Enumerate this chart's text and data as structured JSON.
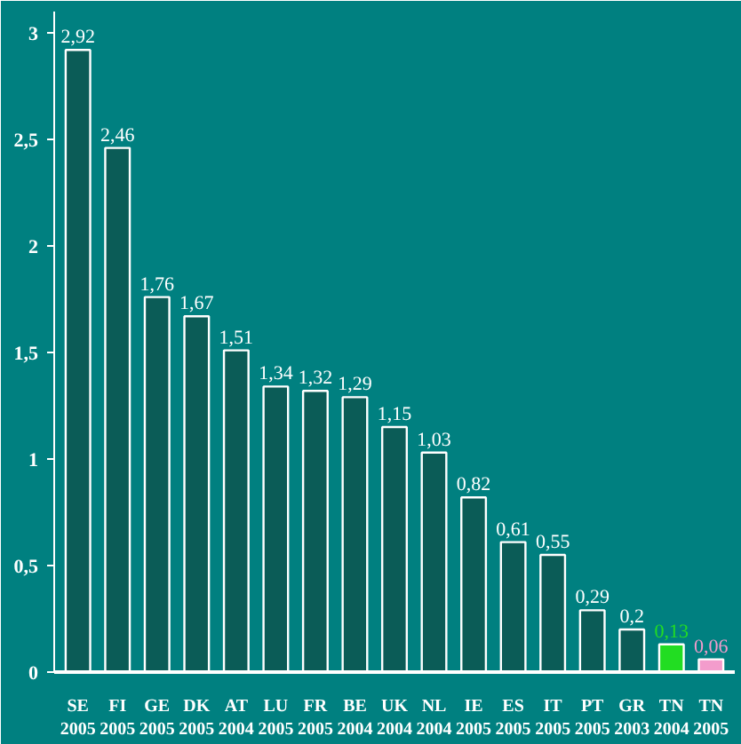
{
  "chart_data": {
    "type": "bar",
    "categories": [
      "SE\n2005",
      "FI\n2005",
      "GE\n2005",
      "DK\n2005",
      "AT\n2004",
      "LU\n2005",
      "FR\n2005",
      "BE\n2004",
      "UK\n2004",
      "NL\n2004",
      "IE\n2005",
      "ES\n2005",
      "IT\n2005",
      "PT\n2005",
      "GR\n2003",
      "TN\n2004",
      "TN\n2005"
    ],
    "values": [
      2.92,
      2.46,
      1.76,
      1.67,
      1.51,
      1.34,
      1.32,
      1.29,
      1.15,
      1.03,
      0.82,
      0.61,
      0.55,
      0.29,
      0.2,
      0.13,
      0.06
    ],
    "value_labels": [
      "2,92",
      "2,46",
      "1,76",
      "1,67",
      "1,51",
      "1,34",
      "1,32",
      "1,29",
      "1,15",
      "1,03",
      "0,82",
      "0,61",
      "0,55",
      "0,29",
      "0,2",
      "0,13",
      "0,06"
    ],
    "colors": [
      "#0b5c57",
      "#0b5c57",
      "#0b5c57",
      "#0b5c57",
      "#0b5c57",
      "#0b5c57",
      "#0b5c57",
      "#0b5c57",
      "#0b5c57",
      "#0b5c57",
      "#0b5c57",
      "#0b5c57",
      "#0b5c57",
      "#0b5c57",
      "#0b5c57",
      "#22dd22",
      "#f39ccc"
    ],
    "ylim": [
      0,
      3.1
    ],
    "yticks": [
      0,
      {
        "value": 0.5,
        "label": "0,5"
      },
      1,
      {
        "value": 1.5,
        "label": "1,5"
      },
      2,
      {
        "value": 2.5,
        "label": "2,5"
      },
      3
    ],
    "grid": false
  }
}
